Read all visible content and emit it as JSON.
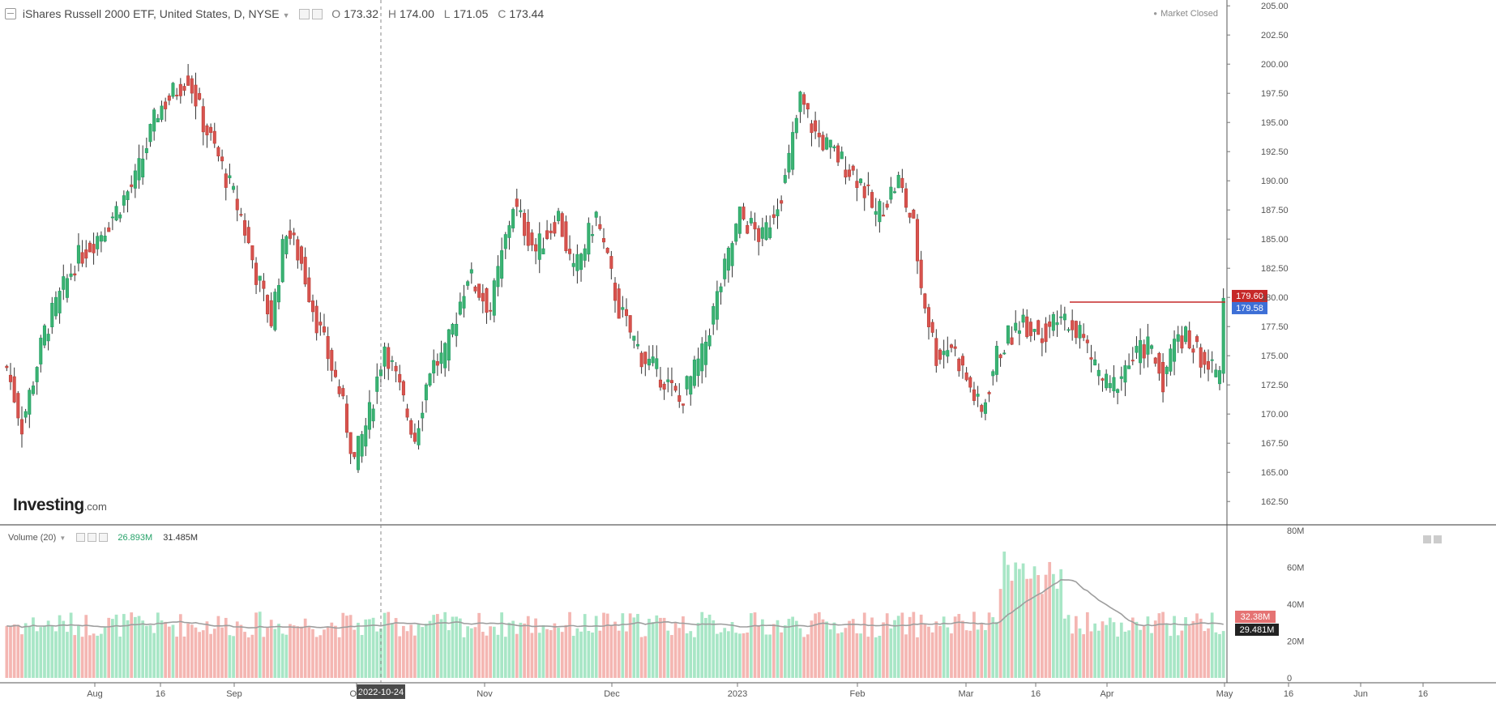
{
  "header": {
    "title": "iShares Russell 2000 ETF, United States, D, NYSE",
    "open_label": "O",
    "open": "173.32",
    "high_label": "H",
    "high": "174.00",
    "low_label": "L",
    "low": "171.05",
    "close_label": "C",
    "close": "173.44",
    "status": "Market Closed"
  },
  "volume_header": {
    "label": "Volume (20)",
    "value1": "26.893M",
    "value2": "31.485M"
  },
  "logo": {
    "main": "Investing",
    "suffix": ".com"
  },
  "colors": {
    "up": "#26a269",
    "up_fill": "#3cb371",
    "down": "#c1443c",
    "down_fill": "#d9534f",
    "up_vol": "#a8e6c6",
    "down_vol": "#f4b6b2",
    "resistance": "#c62828",
    "ma": "#9e9e9e",
    "axis_text": "#555555"
  },
  "chart_data": {
    "type": "candlestick",
    "title": "iShares Russell 2000 ETF, United States, D, NYSE",
    "price_axis": {
      "ticks": [
        "205.00",
        "202.50",
        "200.00",
        "197.50",
        "195.00",
        "192.50",
        "190.00",
        "187.50",
        "185.00",
        "182.50",
        "180.00",
        "177.50",
        "175.00",
        "172.50",
        "170.00",
        "167.50",
        "165.00",
        "162.50"
      ],
      "range": [
        160.5,
        205.5
      ]
    },
    "volume_axis": {
      "ticks": [
        "80M",
        "60M",
        "40M",
        "20M",
        "0"
      ],
      "range": [
        0,
        80
      ]
    },
    "x_axis_labels": [
      "Aug",
      "16",
      "Sep",
      "Oct",
      "Nov",
      "Dec",
      "2023",
      "Feb",
      "Mar",
      "16",
      "Apr",
      "May",
      "16",
      "Jun",
      "16"
    ],
    "crosshair_date": "2022-10-24",
    "price_markers": {
      "upper": "179.60",
      "lower": "179.58"
    },
    "volume_markers": {
      "upper": "32.38M",
      "lower": "29.481M"
    },
    "resistance_level": 179.6,
    "series": [
      {
        "name": "OHLC",
        "type": "candlestick"
      },
      {
        "name": "Volume",
        "type": "bar"
      },
      {
        "name": "Volume MA",
        "type": "line"
      }
    ]
  }
}
